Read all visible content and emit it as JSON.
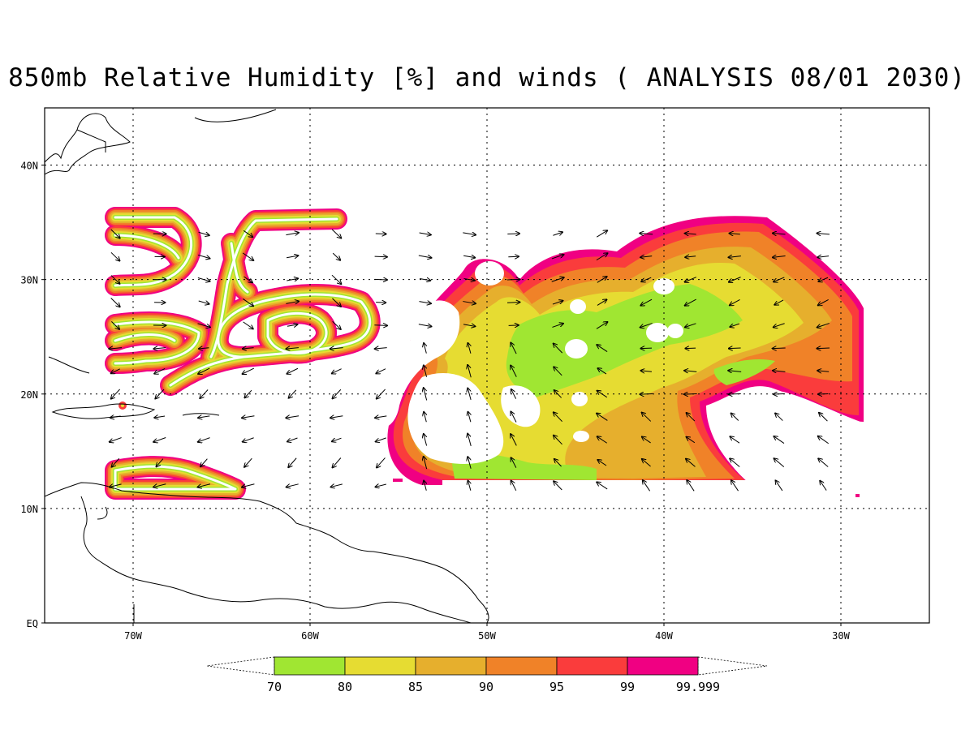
{
  "title": "850mb Relative Humidity [%] and winds ( ANALYSIS 08/01 2030)",
  "map": {
    "lon_range": [
      -75,
      -25
    ],
    "lat_range": [
      0,
      45
    ],
    "lat_ticks": [
      {
        "lat": 40,
        "label": "40N"
      },
      {
        "lat": 30,
        "label": "30N"
      },
      {
        "lat": 20,
        "label": "20N"
      },
      {
        "lat": 10,
        "label": "10N"
      },
      {
        "lat": 0,
        "label": "EQ"
      }
    ],
    "lon_ticks": [
      {
        "lon": -70,
        "label": "70W"
      },
      {
        "lon": -60,
        "label": "60W"
      },
      {
        "lon": -50,
        "label": "50W"
      },
      {
        "lon": -40,
        "label": "40W"
      },
      {
        "lon": -30,
        "label": "30W"
      }
    ],
    "grid": "dotted"
  },
  "colorbar": {
    "colors": [
      "#a0e632",
      "#e6dc32",
      "#e6af2d",
      "#f08228",
      "#fa3c3c",
      "#f00082"
    ],
    "labels": [
      "70",
      "80",
      "85",
      "90",
      "95",
      "99",
      "99.999"
    ]
  },
  "colors": {
    "rh70": "#a0e632",
    "rh80": "#e6dc32",
    "rh85": "#e6af2d",
    "rh90": "#f08228",
    "rh95": "#fa3c3c",
    "rh99": "#f00082"
  }
}
